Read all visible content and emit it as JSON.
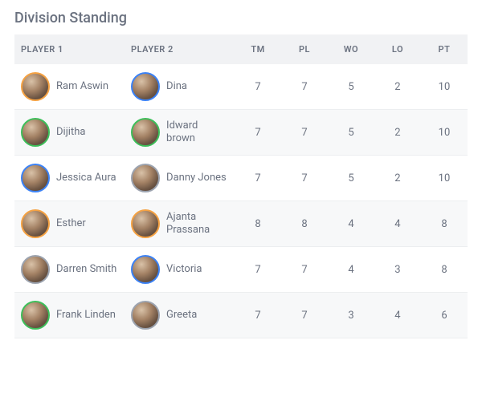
{
  "title": "Division Standing",
  "columns": [
    "PLAYER 1",
    "PLAYER 2",
    "TM",
    "PL",
    "WO",
    "LO",
    "PT"
  ],
  "ring_colors": {
    "orange": "#f5a243",
    "green": "#3dbf5a",
    "blue": "#3b82f6",
    "gray": "#9ca3af"
  },
  "rows": [
    {
      "alt": false,
      "p1": {
        "name": "Ram Aswin",
        "ring": "orange"
      },
      "p2": {
        "name": "Dina",
        "ring": "blue"
      },
      "tm": 7,
      "pl": 7,
      "wo": 5,
      "lo": 2,
      "pt": 10
    },
    {
      "alt": true,
      "p1": {
        "name": "Dijitha",
        "ring": "green"
      },
      "p2": {
        "name": "Idward brown",
        "ring": "green"
      },
      "tm": 7,
      "pl": 7,
      "wo": 5,
      "lo": 2,
      "pt": 10
    },
    {
      "alt": false,
      "p1": {
        "name": "Jessica Aura",
        "ring": "blue"
      },
      "p2": {
        "name": "Danny Jones",
        "ring": "gray"
      },
      "tm": 7,
      "pl": 7,
      "wo": 5,
      "lo": 2,
      "pt": 10
    },
    {
      "alt": true,
      "p1": {
        "name": "Esther",
        "ring": "orange"
      },
      "p2": {
        "name": "Ajanta Prassana",
        "ring": "orange"
      },
      "tm": 8,
      "pl": 8,
      "wo": 4,
      "lo": 4,
      "pt": 8
    },
    {
      "alt": false,
      "p1": {
        "name": "Darren Smith",
        "ring": "gray"
      },
      "p2": {
        "name": "Victoria",
        "ring": "blue"
      },
      "tm": 7,
      "pl": 7,
      "wo": 4,
      "lo": 3,
      "pt": 8
    },
    {
      "alt": true,
      "p1": {
        "name": "Frank Linden",
        "ring": "green"
      },
      "p2": {
        "name": "Greeta",
        "ring": "gray"
      },
      "tm": 7,
      "pl": 7,
      "wo": 3,
      "lo": 4,
      "pt": 6
    }
  ]
}
